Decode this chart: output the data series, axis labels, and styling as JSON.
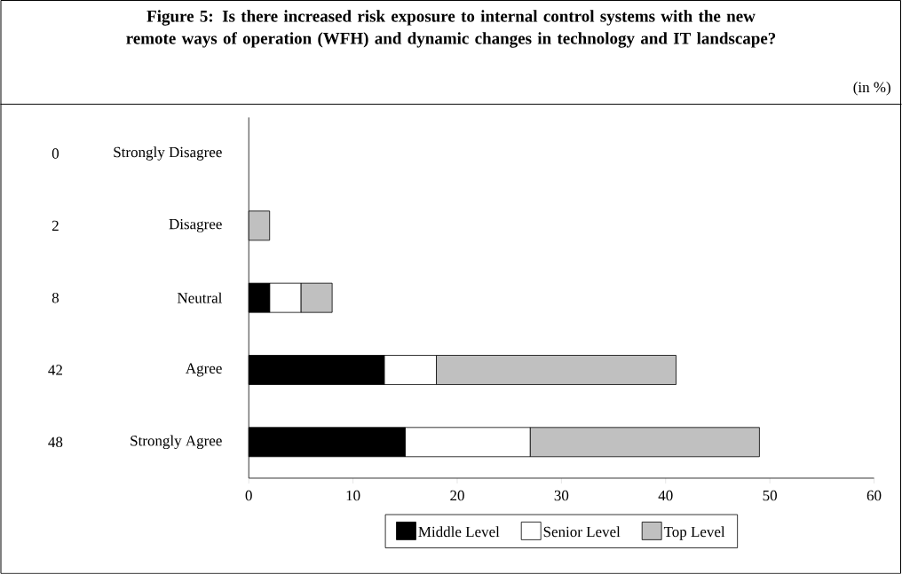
{
  "chart_data": {
    "type": "bar",
    "orientation": "horizontal",
    "stacked": true,
    "title": "Figure 5: Is there increased risk exposure to internal control systems with the new remote ways of operation (WFH) and dynamic changes in technology and IT landscape?",
    "annotations": [
      "(in %)",
      "0",
      "2",
      "8",
      "42",
      "48"
    ],
    "categories": [
      "Strongly Disagree",
      "Disagree",
      "Neutral",
      "Agree",
      "Strongly Agree"
    ],
    "series": [
      {
        "name": "Middle Level",
        "color": "#000000",
        "values": [
          null,
          null,
          2,
          13,
          15
        ]
      },
      {
        "name": "Senior Level",
        "color": "#ffffff",
        "values": [
          null,
          null,
          3,
          5,
          12
        ]
      },
      {
        "name": "Top Level",
        "color": "#c0c0c0",
        "values": [
          null,
          2,
          3,
          23,
          22
        ]
      }
    ],
    "xlim": [
      0,
      60
    ],
    "xticks": [
      0,
      10,
      20,
      30,
      40,
      50,
      60
    ],
    "legend": "bottom"
  }
}
